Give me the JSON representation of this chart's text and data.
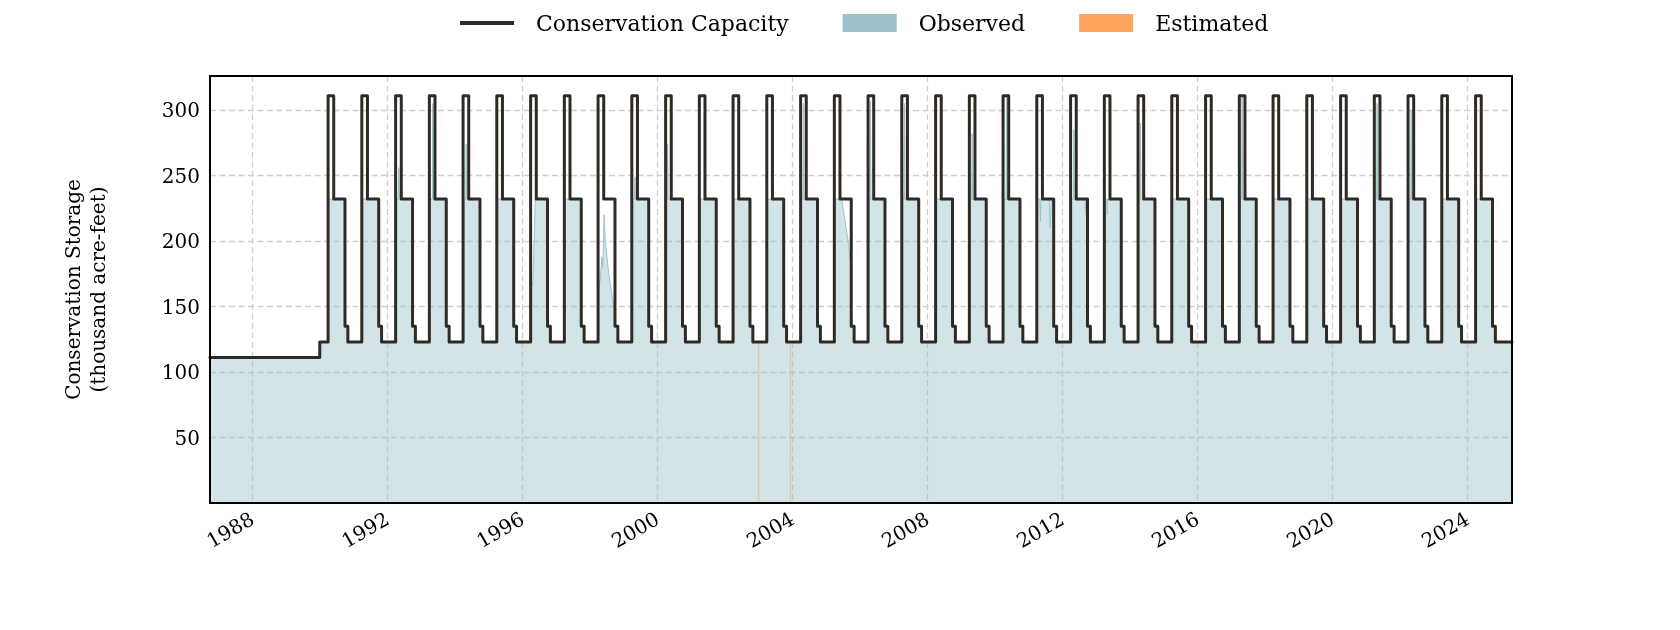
{
  "chart_data": {
    "type": "area",
    "ylabel": "Conservation Storage\n(thousand acre-feet)",
    "legend": "top",
    "grid": true,
    "xlim": [
      "1986-10-01",
      "2025-04-30"
    ],
    "xticks": [
      "1988",
      "1992",
      "1996",
      "2000",
      "2004",
      "2008",
      "2012",
      "2016",
      "2020",
      "2024"
    ],
    "ylim": [
      0,
      326
    ],
    "yticks": [
      50,
      100,
      150,
      200,
      250,
      300
    ],
    "series": [
      {
        "name": "Conservation Capacity",
        "type": "step",
        "color": "#2f2b24",
        "x": [
          "1986-10-01",
          "1990-01-01",
          "1990-04-01",
          "1990-06-01",
          "1990-10-01",
          "1990-11-01",
          "1991-04-01",
          "1991-06-01",
          "1991-10-01",
          "1991-11-01",
          "1992-04-01",
          "1992-06-01",
          "1992-10-01",
          "1992-11-01",
          "1993-04-01",
          "1993-06-01",
          "1993-10-01",
          "1993-11-01",
          "1994-04-01",
          "1994-06-01",
          "1994-10-01",
          "1994-11-01",
          "1995-04-01",
          "1995-06-01",
          "1995-10-01",
          "1995-11-01",
          "1996-04-01",
          "1996-06-01",
          "1996-10-01",
          "1996-11-01",
          "1997-04-01",
          "1997-06-01",
          "1997-10-01",
          "1997-11-01",
          "1998-04-01",
          "1998-06-01",
          "1998-10-01",
          "1998-11-01",
          "1999-04-01",
          "1999-06-01",
          "1999-10-01",
          "1999-11-01",
          "2000-04-01",
          "2000-06-01",
          "2000-10-01",
          "2000-11-01",
          "2001-04-01",
          "2001-06-01",
          "2001-10-01",
          "2001-11-01",
          "2002-04-01",
          "2002-06-01",
          "2002-10-01",
          "2002-11-01",
          "2003-04-01",
          "2003-06-01",
          "2003-10-01",
          "2003-11-01",
          "2004-04-01",
          "2004-06-01",
          "2004-10-01",
          "2004-11-01",
          "2005-04-01",
          "2005-06-01",
          "2005-10-01",
          "2005-11-01",
          "2006-04-01",
          "2006-06-01",
          "2006-10-01",
          "2006-11-01",
          "2007-04-01",
          "2007-06-01",
          "2007-10-01",
          "2007-11-01",
          "2008-04-01",
          "2008-06-01",
          "2008-10-01",
          "2008-11-01",
          "2009-04-01",
          "2009-06-01",
          "2009-10-01",
          "2009-11-01",
          "2010-04-01",
          "2010-06-01",
          "2010-10-01",
          "2010-11-01",
          "2011-04-01",
          "2011-06-01",
          "2011-10-01",
          "2011-11-01",
          "2012-04-01",
          "2012-06-01",
          "2012-10-01",
          "2012-11-01",
          "2013-04-01",
          "2013-06-01",
          "2013-10-01",
          "2013-11-01",
          "2014-04-01",
          "2014-06-01",
          "2014-10-01",
          "2014-11-01",
          "2015-04-01",
          "2015-06-01",
          "2015-10-01",
          "2015-11-01",
          "2016-04-01",
          "2016-06-01",
          "2016-10-01",
          "2016-11-01",
          "2017-04-01",
          "2017-06-01",
          "2017-10-01",
          "2017-11-01",
          "2018-04-01",
          "2018-06-01",
          "2018-10-01",
          "2018-11-01",
          "2019-04-01",
          "2019-06-01",
          "2019-10-01",
          "2019-11-01",
          "2020-04-01",
          "2020-06-01",
          "2020-10-01",
          "2020-11-01",
          "2021-04-01",
          "2021-06-01",
          "2021-10-01",
          "2021-11-01",
          "2022-04-01",
          "2022-06-01",
          "2022-10-01",
          "2022-11-01",
          "2023-04-01",
          "2023-06-01",
          "2023-10-01",
          "2023-11-01",
          "2024-04-01",
          "2024-06-01",
          "2024-10-01",
          "2024-11-01",
          "2025-04-30"
        ],
        "values": [
          111,
          123,
          311,
          232,
          135,
          123,
          311,
          232,
          135,
          123,
          311,
          232,
          135,
          123,
          311,
          232,
          135,
          123,
          311,
          232,
          135,
          123,
          311,
          232,
          135,
          123,
          311,
          232,
          135,
          123,
          311,
          232,
          135,
          123,
          311,
          232,
          135,
          123,
          311,
          232,
          135,
          123,
          311,
          232,
          135,
          123,
          311,
          232,
          135,
          123,
          311,
          232,
          135,
          123,
          311,
          232,
          135,
          123,
          311,
          232,
          135,
          123,
          311,
          232,
          135,
          123,
          311,
          232,
          135,
          123,
          311,
          232,
          135,
          123,
          311,
          232,
          135,
          123,
          311,
          232,
          135,
          123,
          311,
          232,
          135,
          123,
          311,
          232,
          135,
          123,
          311,
          232,
          135,
          123,
          311,
          232,
          135,
          123,
          311,
          232,
          135,
          123,
          311,
          232,
          135,
          123,
          311,
          232,
          135,
          123,
          311,
          232,
          135,
          123,
          311,
          232,
          135,
          123,
          311,
          232,
          135,
          123,
          311,
          232,
          135,
          123,
          311,
          232,
          135,
          123,
          311,
          232,
          135,
          123,
          311,
          232,
          135,
          123,
          311,
          232,
          135,
          123,
          123
        ]
      },
      {
        "name": "Observed",
        "color": "#9cc3ca",
        "x": [
          "1986-10-01",
          "1989-12-31",
          "1990-01-01",
          "1990-03-31",
          "1990-04-01",
          "1990-09-30",
          "1990-10-01",
          "1990-10-31",
          "1990-11-01",
          "1991-03-31",
          "1991-04-01",
          "1991-09-30",
          "1991-10-01",
          "1991-10-31",
          "1991-11-01",
          "1992-03-31",
          "1992-04-01",
          "1992-04-30",
          "1992-05-05",
          "1992-05-10",
          "1992-09-30",
          "1992-10-01",
          "1992-10-31",
          "1992-11-01",
          "1993-03-31",
          "1993-04-01",
          "1993-05-03",
          "1993-05-08",
          "1993-05-13",
          "1993-09-30",
          "1993-10-01",
          "1993-10-31",
          "1993-11-01",
          "1994-03-31",
          "1994-04-01",
          "1994-04-30",
          "1994-05-05",
          "1994-05-10",
          "1994-09-30",
          "1994-10-01",
          "1994-10-31",
          "1994-11-01",
          "1995-03-31",
          "1995-04-01",
          "1995-09-30",
          "1995-10-01",
          "1995-10-31",
          "1995-11-01",
          "1996-03-31",
          "1996-04-01",
          "1996-04-25",
          "1996-05-22",
          "1996-09-30",
          "1996-10-01",
          "1996-10-31",
          "1996-11-01",
          "1997-03-31",
          "1997-04-01",
          "1997-09-30",
          "1997-10-01",
          "1997-10-31",
          "1997-11-01",
          "1998-03-31",
          "1998-04-01",
          "1998-04-27",
          "1998-05-12",
          "1998-05-23",
          "1998-06-05",
          "1998-06-20",
          "1998-07-27",
          "1998-08-25",
          "1998-09-16",
          "1998-09-30",
          "1998-10-01",
          "1998-10-31",
          "1998-11-01",
          "1999-03-31",
          "1999-04-01",
          "1999-04-30",
          "1999-05-05",
          "1999-05-10",
          "1999-09-30",
          "1999-10-01",
          "1999-10-31",
          "1999-11-01",
          "2000-03-31",
          "2000-04-01",
          "2000-04-18",
          "2000-04-23",
          "2000-04-28",
          "2000-09-30",
          "2000-10-01",
          "2000-10-31",
          "2000-11-01",
          "2001-03-31",
          "2001-04-01",
          "2001-09-30",
          "2001-10-01",
          "2001-10-31",
          "2001-11-01",
          "2002-03-31",
          "2002-04-01",
          "2002-09-30",
          "2002-10-01",
          "2002-10-31",
          "2002-11-01",
          "2003-03-31",
          "2003-04-01",
          "2003-09-30",
          "2003-10-01",
          "2003-10-31",
          "2003-11-01",
          "2004-03-31",
          "2004-04-01",
          "2004-04-26",
          "2004-05-01",
          "2004-05-06",
          "2004-09-30",
          "2004-10-01",
          "2004-10-31",
          "2004-11-01",
          "2005-03-31",
          "2005-04-01",
          "2005-06-20",
          "2005-07-20",
          "2005-08-28",
          "2005-09-23",
          "2005-09-30",
          "2005-10-01",
          "2005-10-31",
          "2005-11-01",
          "2006-03-31",
          "2006-04-01",
          "2006-04-22",
          "2006-04-27",
          "2006-05-02",
          "2006-09-30",
          "2006-10-01",
          "2006-10-31",
          "2006-11-01",
          "2007-03-31",
          "2007-04-01",
          "2007-04-26",
          "2007-05-01",
          "2007-05-06",
          "2007-09-30",
          "2007-10-01",
          "2007-10-31",
          "2007-11-01",
          "2008-03-31",
          "2008-04-01",
          "2008-09-30",
          "2008-10-01",
          "2008-10-31",
          "2008-11-01",
          "2009-03-31",
          "2009-04-01",
          "2009-04-26",
          "2009-05-01",
          "2009-05-06",
          "2009-09-30",
          "2009-10-01",
          "2009-10-31",
          "2009-11-01",
          "2010-03-31",
          "2010-04-01",
          "2010-05-03",
          "2010-05-08",
          "2010-05-13",
          "2010-09-30",
          "2010-10-01",
          "2010-10-31",
          "2010-11-01",
          "2011-03-31",
          "2011-04-01",
          "2011-05-05",
          "2011-05-10",
          "2011-05-15",
          "2011-08-15",
          "2011-08-25",
          "2011-09-04",
          "2011-09-30",
          "2011-10-01",
          "2011-10-31",
          "2011-11-01",
          "2012-03-31",
          "2012-04-01",
          "2012-04-30",
          "2012-05-05",
          "2012-05-10",
          "2012-09-05",
          "2012-09-10",
          "2012-09-15",
          "2012-09-30",
          "2012-10-01",
          "2012-10-31",
          "2012-11-01",
          "2013-03-31",
          "2013-04-01",
          "2013-04-26",
          "2013-05-01",
          "2013-05-06",
          "2013-09-30",
          "2013-10-01",
          "2013-10-31",
          "2013-11-01",
          "2014-03-31",
          "2014-04-01",
          "2014-04-22",
          "2014-04-27",
          "2014-05-02",
          "2014-09-30",
          "2014-10-01",
          "2014-10-31",
          "2014-11-01",
          "2015-03-31",
          "2015-04-01",
          "2015-09-30",
          "2015-10-01",
          "2015-10-31",
          "2015-11-01",
          "2016-03-31",
          "2016-04-01",
          "2016-09-30",
          "2016-10-01",
          "2016-10-31",
          "2016-11-01",
          "2017-03-31",
          "2017-04-01",
          "2017-04-26",
          "2017-05-01",
          "2017-05-06",
          "2017-09-30",
          "2017-10-01",
          "2017-10-31",
          "2017-11-01",
          "2018-03-31",
          "2018-04-01",
          "2018-09-30",
          "2018-10-01",
          "2018-10-31",
          "2018-11-01",
          "2019-03-31",
          "2019-04-01",
          "2019-09-30",
          "2019-10-01",
          "2019-10-31",
          "2019-11-01",
          "2020-03-31",
          "2020-04-01",
          "2020-09-30",
          "2020-10-01",
          "2020-10-31",
          "2020-11-01",
          "2021-03-31",
          "2021-04-01",
          "2021-04-26",
          "2021-05-01",
          "2021-05-06",
          "2021-09-30",
          "2021-10-01",
          "2021-10-31",
          "2021-11-01",
          "2022-03-31",
          "2022-04-01",
          "2022-04-30",
          "2022-05-05",
          "2022-05-10",
          "2022-09-30",
          "2022-10-01",
          "2022-10-31",
          "2022-11-01",
          "2023-03-31",
          "2023-04-01",
          "2023-09-30",
          "2023-10-01",
          "2023-10-31",
          "2023-11-01",
          "2024-03-31",
          "2024-04-01",
          "2024-09-30",
          "2024-10-01",
          "2024-10-31",
          "2024-11-01",
          "2025-04-30"
        ],
        "values": [
          111,
          111,
          123,
          123,
          232,
          232,
          135,
          135,
          123,
          123,
          232,
          232,
          135,
          135,
          123,
          123,
          232,
          232,
          256,
          232,
          232,
          135,
          135,
          123,
          123,
          232,
          232,
          305,
          232,
          232,
          135,
          135,
          123,
          123,
          232,
          232,
          274,
          232,
          232,
          135,
          135,
          123,
          123,
          232,
          232,
          135,
          135,
          123,
          123,
          170,
          166,
          232,
          232,
          135,
          135,
          123,
          123,
          232,
          232,
          135,
          135,
          123,
          123,
          160,
          172,
          188,
          180,
          220,
          199,
          174,
          161,
          150,
          145,
          135,
          135,
          123,
          123,
          232,
          232,
          249,
          232,
          232,
          135,
          135,
          123,
          123,
          232,
          232,
          274,
          232,
          232,
          135,
          135,
          123,
          123,
          232,
          232,
          135,
          135,
          123,
          123,
          232,
          232,
          135,
          135,
          123,
          123,
          232,
          232,
          135,
          135,
          123,
          123,
          232,
          232,
          305,
          232,
          232,
          135,
          135,
          123,
          123,
          232,
          232,
          218,
          200,
          183,
          180,
          135,
          135,
          123,
          123,
          232,
          232,
          307,
          232,
          232,
          135,
          135,
          123,
          123,
          232,
          232,
          305,
          232,
          232,
          135,
          135,
          123,
          123,
          232,
          232,
          135,
          135,
          123,
          123,
          232,
          232,
          282,
          232,
          232,
          135,
          135,
          123,
          123,
          232,
          232,
          310,
          232,
          232,
          135,
          135,
          123,
          123,
          232,
          232,
          215,
          232,
          232,
          210,
          232,
          232,
          135,
          135,
          123,
          123,
          232,
          232,
          285,
          232,
          232,
          220,
          232,
          232,
          135,
          135,
          123,
          123,
          232,
          232,
          220,
          232,
          232,
          135,
          135,
          123,
          123,
          232,
          232,
          290,
          232,
          232,
          135,
          135,
          123,
          123,
          232,
          232,
          135,
          135,
          123,
          123,
          232,
          232,
          135,
          135,
          123,
          123,
          232,
          232,
          310,
          232,
          232,
          135,
          135,
          123,
          123,
          232,
          232,
          135,
          135,
          123,
          123,
          232,
          232,
          135,
          135,
          123,
          123,
          232,
          232,
          135,
          135,
          123,
          123,
          232,
          232,
          305,
          232,
          232,
          135,
          135,
          123,
          123,
          232,
          232,
          300,
          232,
          232,
          135,
          135,
          123,
          123,
          232,
          232,
          135,
          135,
          123,
          123,
          232,
          232,
          135,
          135,
          123,
          123
        ]
      },
      {
        "name": "Estimated",
        "color": "#ffa65e",
        "x": [
          "2002-12-26",
          "2003-01-09",
          "2003-06-15",
          "2003-12-06",
          "2003-12-20"
        ],
        "values": [
          123,
          123,
          null,
          123,
          123
        ]
      }
    ]
  }
}
